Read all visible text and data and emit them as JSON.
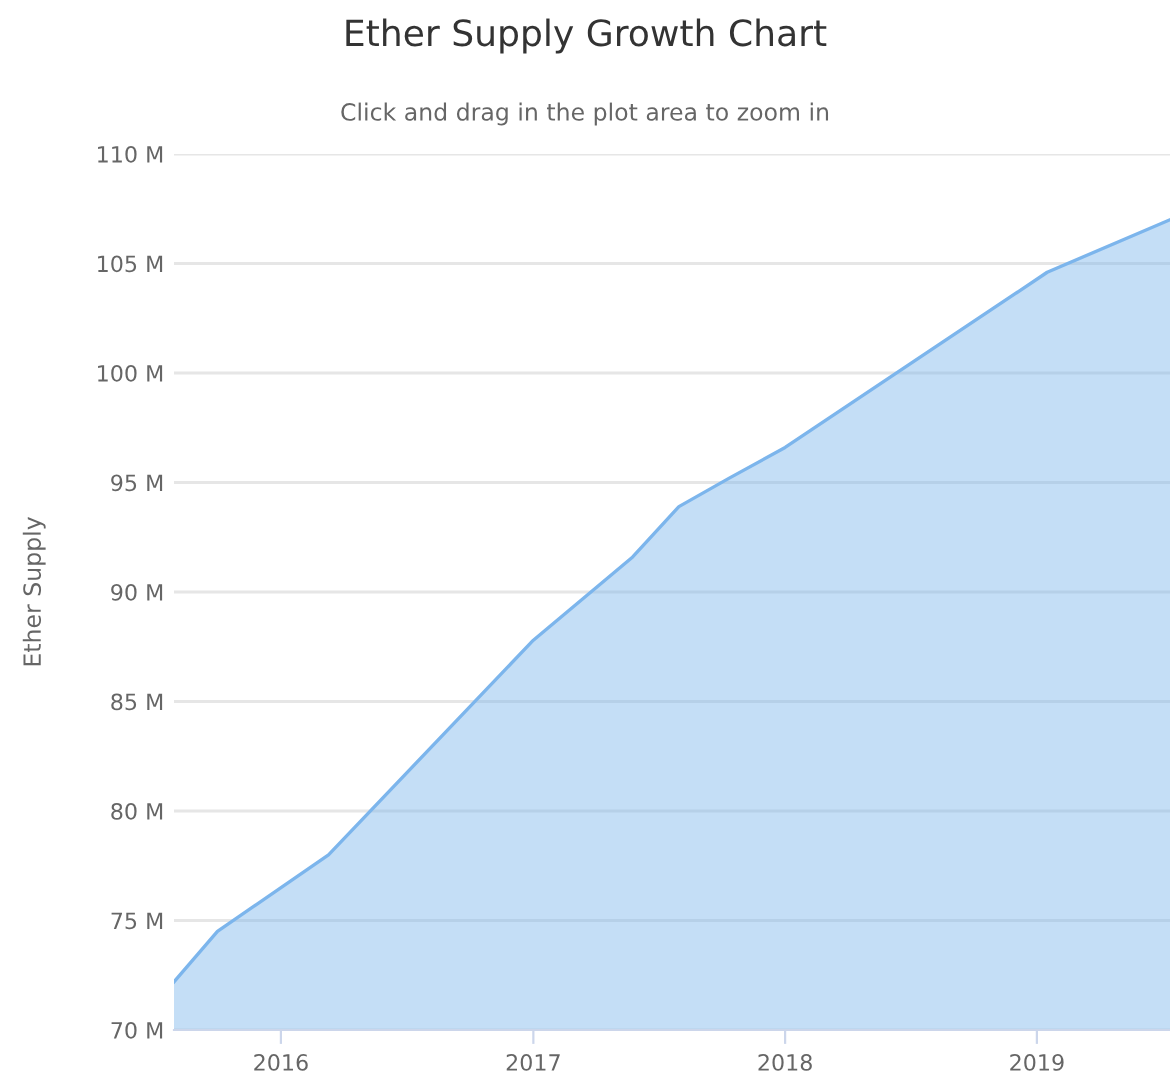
{
  "chart_data": {
    "type": "area",
    "title": "Ether Supply Growth Chart",
    "subtitle": "Click and drag in the plot area to zoom in",
    "ylabel": "Ether Supply",
    "x": [
      "2015-07-30",
      "2015-10-01",
      "2016-03-10",
      "2017-01-01",
      "2017-05-25",
      "2017-07-31",
      "2017-10-12",
      "2018-01-01",
      "2019-01-16",
      "2019-07-13"
    ],
    "series": [
      {
        "color": "#7cb5ec",
        "values": [
          72.2,
          74.5,
          78.0,
          87.8,
          91.6,
          93.9,
          95.2,
          96.6,
          104.6,
          107.0
        ]
      }
    ],
    "xlim": [
      "2015-07-30",
      "2019-07-13"
    ],
    "xticks": [
      {
        "value": "2016-01-01",
        "label": "2016"
      },
      {
        "value": "2017-01-01",
        "label": "2017"
      },
      {
        "value": "2018-01-01",
        "label": "2018"
      },
      {
        "value": "2019-01-01",
        "label": "2019"
      }
    ],
    "ylim": [
      70,
      110
    ],
    "yticks": [
      {
        "value": 70,
        "label": "70 M"
      },
      {
        "value": 75,
        "label": "75 M"
      },
      {
        "value": 80,
        "label": "80 M"
      },
      {
        "value": 85,
        "label": "85 M"
      },
      {
        "value": 90,
        "label": "90 M"
      },
      {
        "value": 95,
        "label": "95 M"
      },
      {
        "value": 100,
        "label": "100 M"
      },
      {
        "value": 105,
        "label": "105 M"
      },
      {
        "value": 110,
        "label": "110 M"
      }
    ],
    "grid": "y",
    "legend": false
  }
}
